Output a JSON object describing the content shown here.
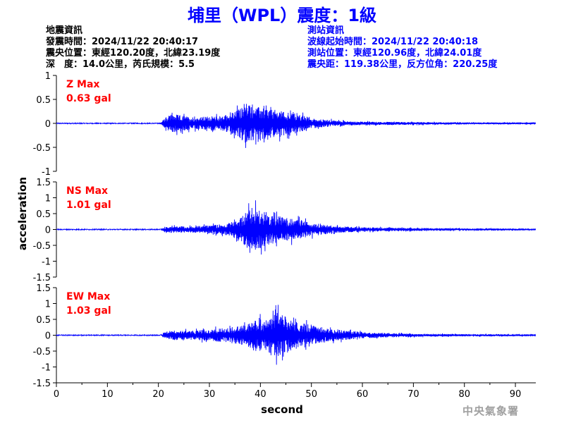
{
  "title": "埔里（WPL）震度：1級",
  "quake_info": {
    "heading": "地震資訊",
    "origin_time": "發震時間：2024/11/22 20:40:17",
    "epicenter": "震央位置：東經120.20度，北緯23.19度",
    "depth_magnitude": "深　度：14.0公里，芮氏規模：5.5"
  },
  "station_info": {
    "heading": "測站資訊",
    "wave_onset": "波線起始時間：2024/11/22 20:40:18",
    "location": "測站位置：東經120.96度，北緯24.01度",
    "distance_azimuth": "震央距：119.38公里，反方位角：220.25度"
  },
  "agency": "中央氣象署",
  "colors": {
    "trace": "#0000ff",
    "title": "#0000ff",
    "max_label": "#ff0000",
    "axis": "#000000",
    "agency": "#a0a0a0"
  },
  "chart_data": {
    "type": "line",
    "xlabel": "second",
    "ylabel": "acceleration",
    "x_range": [
      0,
      94
    ],
    "x_ticks": [
      0,
      10,
      20,
      30,
      40,
      50,
      60,
      70,
      80,
      90
    ],
    "trace_onset_s": 20.5,
    "panels": [
      {
        "component": "Z",
        "max_label": "Z Max",
        "max_value": "0.63 gal",
        "ylim": [
          -1,
          1
        ],
        "y_ticks": [
          1,
          0.5,
          0,
          -0.5,
          -1
        ],
        "peaks": [
          {
            "t": 20.5,
            "amp": 0.02
          },
          {
            "t": 21.5,
            "amp": 0.18
          },
          {
            "t": 22.5,
            "amp": 0.28
          },
          {
            "t": 24,
            "amp": 0.25
          },
          {
            "t": 26,
            "amp": 0.2
          },
          {
            "t": 28,
            "amp": 0.18
          },
          {
            "t": 30,
            "amp": 0.22
          },
          {
            "t": 32,
            "amp": 0.2
          },
          {
            "t": 35,
            "amp": 0.35
          },
          {
            "t": 37.5,
            "amp": 0.6
          },
          {
            "t": 39,
            "amp": 0.5
          },
          {
            "t": 41,
            "amp": 0.45
          },
          {
            "t": 43,
            "amp": 0.4
          },
          {
            "t": 45,
            "amp": 0.35
          },
          {
            "t": 47,
            "amp": 0.3
          },
          {
            "t": 50,
            "amp": 0.15
          },
          {
            "t": 55,
            "amp": 0.08
          },
          {
            "t": 60,
            "amp": 0.05
          },
          {
            "t": 70,
            "amp": 0.04
          },
          {
            "t": 80,
            "amp": 0.03
          },
          {
            "t": 94,
            "amp": 0.02
          }
        ]
      },
      {
        "component": "NS",
        "max_label": "NS Max",
        "max_value": "1.01 gal",
        "ylim": [
          -1.5,
          1.5
        ],
        "y_ticks": [
          1.5,
          1,
          0.5,
          0,
          -0.5,
          -1,
          -1.5
        ],
        "peaks": [
          {
            "t": 20.5,
            "amp": 0.02
          },
          {
            "t": 21.5,
            "amp": 0.12
          },
          {
            "t": 23,
            "amp": 0.15
          },
          {
            "t": 26,
            "amp": 0.14
          },
          {
            "t": 30,
            "amp": 0.18
          },
          {
            "t": 34,
            "amp": 0.3
          },
          {
            "t": 36,
            "amp": 0.5
          },
          {
            "t": 38,
            "amp": 1.0
          },
          {
            "t": 40,
            "amp": 0.9
          },
          {
            "t": 42,
            "amp": 0.7
          },
          {
            "t": 44,
            "amp": 0.55
          },
          {
            "t": 46,
            "amp": 0.5
          },
          {
            "t": 48,
            "amp": 0.4
          },
          {
            "t": 50,
            "amp": 0.3
          },
          {
            "t": 55,
            "amp": 0.15
          },
          {
            "t": 60,
            "amp": 0.1
          },
          {
            "t": 70,
            "amp": 0.07
          },
          {
            "t": 80,
            "amp": 0.05
          },
          {
            "t": 94,
            "amp": 0.04
          }
        ]
      },
      {
        "component": "EW",
        "max_label": "EW Max",
        "max_value": "1.03 gal",
        "ylim": [
          -1.5,
          1.5
        ],
        "y_ticks": [
          1.5,
          1,
          0.5,
          0,
          -0.5,
          -1,
          -1.5
        ],
        "peaks": [
          {
            "t": 20.5,
            "amp": 0.03
          },
          {
            "t": 21.5,
            "amp": 0.2
          },
          {
            "t": 23,
            "amp": 0.22
          },
          {
            "t": 26,
            "amp": 0.2
          },
          {
            "t": 30,
            "amp": 0.25
          },
          {
            "t": 34,
            "amp": 0.35
          },
          {
            "t": 37,
            "amp": 0.45
          },
          {
            "t": 39,
            "amp": 0.75
          },
          {
            "t": 41,
            "amp": 0.7
          },
          {
            "t": 43.5,
            "amp": 1.03
          },
          {
            "t": 46,
            "amp": 0.7
          },
          {
            "t": 48,
            "amp": 0.55
          },
          {
            "t": 50,
            "amp": 0.45
          },
          {
            "t": 53,
            "amp": 0.3
          },
          {
            "t": 57,
            "amp": 0.2
          },
          {
            "t": 62,
            "amp": 0.12
          },
          {
            "t": 70,
            "amp": 0.07
          },
          {
            "t": 80,
            "amp": 0.05
          },
          {
            "t": 94,
            "amp": 0.04
          }
        ]
      }
    ]
  }
}
